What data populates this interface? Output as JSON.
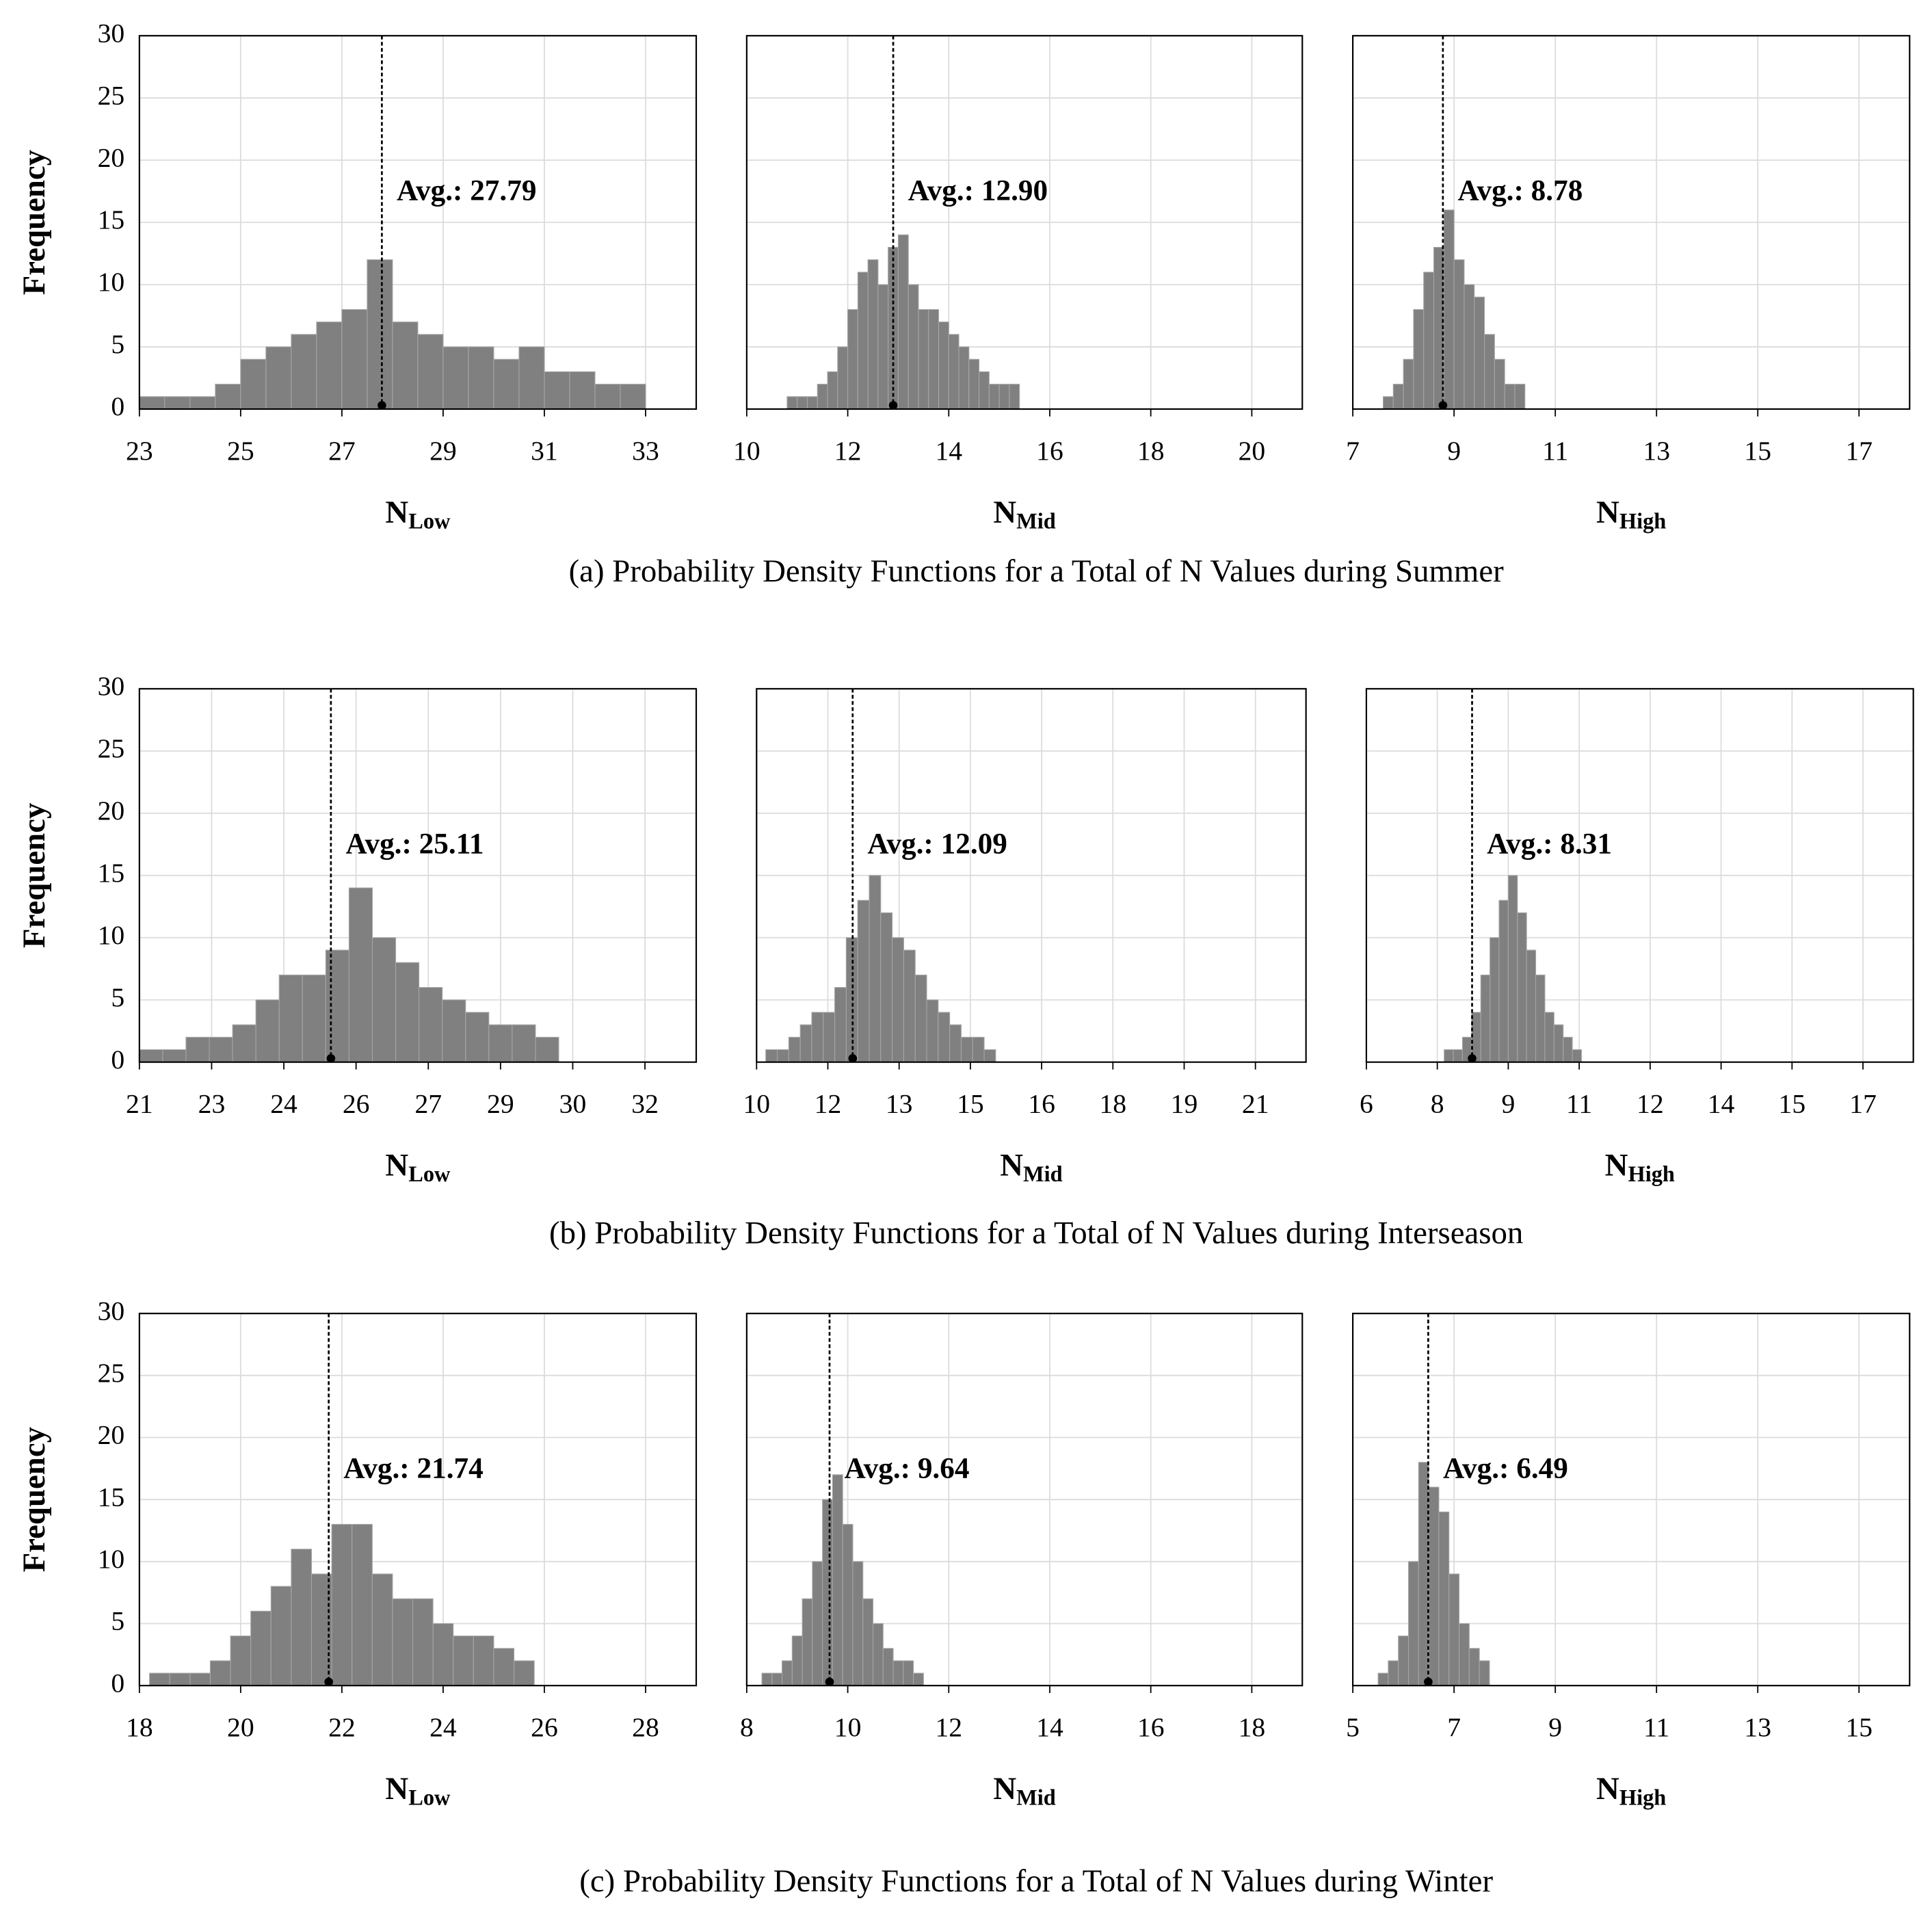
{
  "captions": [
    "(a) Probability Density Functions for a Total of N Values during Summer",
    "(b) Probability Density Functions for a Total of N Values  during Interseason",
    "(c) Probability Density Functions for a Total of N Values during Winter"
  ],
  "chart_data": [
    {
      "type": "histogram",
      "ylabel": "Frequency",
      "xlabel": "N",
      "xlabel_sub": "Low",
      "color": "#808080",
      "grid": true,
      "bins": [
        23,
        23.5,
        24,
        24.5,
        25,
        25.5,
        26,
        26.5,
        27,
        27.5,
        28,
        28.5,
        29,
        29.5,
        30,
        30.5,
        31,
        31.5,
        32,
        32.5,
        33
      ],
      "values": [
        1,
        1,
        1,
        2,
        4,
        5,
        6,
        7,
        8,
        12,
        7,
        6,
        5,
        5,
        4,
        5,
        3,
        3,
        2,
        2
      ],
      "xlim": [
        23,
        34
      ],
      "xticks": [
        23,
        25,
        27,
        29,
        31,
        33
      ],
      "ylim": [
        0,
        30
      ],
      "yticks": [
        0,
        5,
        10,
        15,
        20,
        25,
        30
      ],
      "mean": 27.79,
      "mean_label": "Avg.: 27.79"
    },
    {
      "type": "histogram",
      "xlabel": "N",
      "xlabel_sub": "Mid",
      "color": "#808080",
      "grid": true,
      "bins": [
        10.8,
        11,
        11.2,
        11.4,
        11.6,
        11.8,
        12,
        12.2,
        12.4,
        12.6,
        12.8,
        13,
        13.2,
        13.4,
        13.6,
        13.8,
        14,
        14.2,
        14.4,
        14.6,
        14.8,
        15,
        15.2,
        15.4
      ],
      "values": [
        1,
        1,
        1,
        2,
        3,
        5,
        8,
        11,
        12,
        10,
        13,
        14,
        10,
        8,
        8,
        7,
        6,
        5,
        4,
        3,
        2,
        2,
        2
      ],
      "xlim": [
        10,
        21
      ],
      "xticks": [
        10,
        12,
        14,
        16,
        18,
        20
      ],
      "ylim": [
        0,
        30
      ],
      "yticks": [
        0,
        5,
        10,
        15,
        20,
        25,
        30
      ],
      "mean": 12.9,
      "mean_label": "Avg.: 12.90"
    },
    {
      "type": "histogram",
      "xlabel": "N",
      "xlabel_sub": "High",
      "color": "#808080",
      "grid": true,
      "bins": [
        7.6,
        7.8,
        8,
        8.2,
        8.4,
        8.6,
        8.8,
        9,
        9.2,
        9.4,
        9.6,
        9.8,
        10,
        10.2,
        10.4
      ],
      "values": [
        1,
        2,
        4,
        8,
        11,
        13,
        16,
        12,
        10,
        9,
        6,
        4,
        2,
        2
      ],
      "xlim": [
        7,
        18
      ],
      "xticks": [
        7,
        9,
        11,
        13,
        15,
        17
      ],
      "ylim": [
        0,
        30
      ],
      "yticks": [
        0,
        5,
        10,
        15,
        20,
        25,
        30
      ],
      "mean": 8.78,
      "mean_label": "Avg.: 8.78"
    },
    {
      "type": "histogram",
      "ylabel": "Frequency",
      "xlabel": "N",
      "xlabel_sub": "Low",
      "color": "#808080",
      "grid": true,
      "bins": [
        21,
        21.5,
        22,
        22.5,
        23,
        23.5,
        24,
        24.5,
        25,
        25.5,
        26,
        26.5,
        27,
        27.5,
        28,
        28.5,
        29,
        29.5,
        30
      ],
      "values": [
        1,
        1,
        2,
        2,
        3,
        5,
        7,
        7,
        9,
        14,
        10,
        8,
        6,
        5,
        4,
        3,
        3,
        2
      ],
      "xlim": [
        21,
        32.95
      ],
      "xticks": [
        21,
        {
          "value": 22.55,
          "label": "23"
        },
        {
          "value": 24.1,
          "label": "24"
        },
        {
          "value": 25.65,
          "label": "26"
        },
        {
          "value": 27.2,
          "label": "27"
        },
        {
          "value": 28.75,
          "label": "29"
        },
        {
          "value": 30.3,
          "label": "30"
        },
        {
          "value": 31.85,
          "label": "32"
        }
      ],
      "ylim": [
        0,
        30
      ],
      "yticks": [
        0,
        5,
        10,
        15,
        20,
        25,
        30
      ],
      "mean": 25.11,
      "mean_label": "Avg.: 25.11"
    },
    {
      "type": "histogram",
      "xlabel": "N",
      "xlabel_sub": "Mid",
      "color": "#808080",
      "grid": true,
      "bins": [
        10.2,
        10.45,
        10.7,
        10.95,
        11.2,
        11.45,
        11.7,
        11.95,
        12.2,
        12.45,
        12.7,
        12.95,
        13.2,
        13.45,
        13.7,
        13.95,
        14.2,
        14.45,
        14.7,
        14.95,
        15.2
      ],
      "values": [
        1,
        1,
        2,
        3,
        4,
        4,
        6,
        10,
        13,
        15,
        12,
        10,
        9,
        7,
        5,
        4,
        3,
        2,
        2,
        1
      ],
      "xlim": [
        10,
        21.95
      ],
      "xticks": [
        10,
        {
          "value": 11.55,
          "label": "12"
        },
        {
          "value": 13.1,
          "label": "13"
        },
        {
          "value": 14.65,
          "label": "15"
        },
        {
          "value": 16.2,
          "label": "16"
        },
        {
          "value": 17.75,
          "label": "18"
        },
        {
          "value": 19.3,
          "label": "19"
        },
        {
          "value": 20.85,
          "label": "21"
        }
      ],
      "ylim": [
        0,
        30
      ],
      "yticks": [
        0,
        5,
        10,
        15,
        20,
        25,
        30
      ],
      "mean": 12.09,
      "mean_label": "Avg.: 12.09"
    },
    {
      "type": "histogram",
      "xlabel": "N",
      "xlabel_sub": "High",
      "color": "#808080",
      "grid": true,
      "bins": [
        7.7,
        7.9,
        8.1,
        8.3,
        8.5,
        8.7,
        8.9,
        9.1,
        9.3,
        9.5,
        9.7,
        9.9,
        10.1,
        10.3,
        10.5,
        10.7
      ],
      "values": [
        1,
        1,
        2,
        4,
        7,
        10,
        13,
        15,
        12,
        9,
        7,
        4,
        3,
        2,
        1
      ],
      "xlim": [
        6,
        17.95
      ],
      "xticks": [
        6,
        {
          "value": 7.55,
          "label": "8"
        },
        {
          "value": 9.1,
          "label": "9"
        },
        {
          "value": 10.65,
          "label": "11"
        },
        {
          "value": 12.2,
          "label": "12"
        },
        {
          "value": 13.75,
          "label": "14"
        },
        {
          "value": 15.3,
          "label": "15"
        },
        {
          "value": 16.85,
          "label": "17"
        }
      ],
      "ylim": [
        0,
        30
      ],
      "yticks": [
        0,
        5,
        10,
        15,
        20,
        25,
        30
      ],
      "mean": 8.31,
      "mean_label": "Avg.: 8.31"
    },
    {
      "type": "histogram",
      "ylabel": "Frequency",
      "xlabel": "N",
      "xlabel_sub": "Low",
      "color": "#808080",
      "grid": true,
      "bins": [
        18.2,
        18.6,
        19,
        19.4,
        19.8,
        20.2,
        20.6,
        21,
        21.4,
        21.8,
        22.2,
        22.6,
        23,
        23.4,
        23.8,
        24.2,
        24.6,
        25,
        25.4,
        25.8
      ],
      "values": [
        1,
        1,
        1,
        2,
        4,
        6,
        8,
        11,
        9,
        13,
        13,
        9,
        7,
        7,
        5,
        4,
        4,
        3,
        2
      ],
      "xlim": [
        18,
        29
      ],
      "xticks": [
        18,
        20,
        22,
        24,
        26,
        28
      ],
      "ylim": [
        0,
        30
      ],
      "yticks": [
        0,
        5,
        10,
        15,
        20,
        25,
        30
      ],
      "mean": 21.74,
      "mean_label": "Avg.: 21.74"
    },
    {
      "type": "histogram",
      "xlabel": "N",
      "xlabel_sub": "Mid",
      "color": "#808080",
      "grid": true,
      "bins": [
        8.3,
        8.5,
        8.7,
        8.9,
        9.1,
        9.3,
        9.5,
        9.7,
        9.9,
        10.1,
        10.3,
        10.5,
        10.7,
        10.9,
        11.1,
        11.3,
        11.5
      ],
      "values": [
        1,
        1,
        2,
        4,
        7,
        10,
        15,
        17,
        13,
        10,
        7,
        5,
        3,
        2,
        2,
        1
      ],
      "xlim": [
        8,
        19
      ],
      "xticks": [
        8,
        10,
        12,
        14,
        16,
        18
      ],
      "ylim": [
        0,
        30
      ],
      "yticks": [
        0,
        5,
        10,
        15,
        20,
        25,
        30
      ],
      "mean": 9.64,
      "mean_label": "Avg.: 9.64"
    },
    {
      "type": "histogram",
      "xlabel": "N",
      "xlabel_sub": "High",
      "color": "#808080",
      "grid": true,
      "bins": [
        5.5,
        5.7,
        5.9,
        6.1,
        6.3,
        6.5,
        6.7,
        6.9,
        7.1,
        7.3,
        7.5,
        7.7
      ],
      "values": [
        1,
        2,
        4,
        10,
        18,
        16,
        14,
        9,
        5,
        3,
        2
      ],
      "xlim": [
        5,
        16
      ],
      "xticks": [
        5,
        7,
        9,
        11,
        13,
        15
      ],
      "ylim": [
        0,
        30
      ],
      "yticks": [
        0,
        5,
        10,
        15,
        20,
        25,
        30
      ],
      "mean": 6.49,
      "mean_label": "Avg.: 6.49"
    }
  ]
}
